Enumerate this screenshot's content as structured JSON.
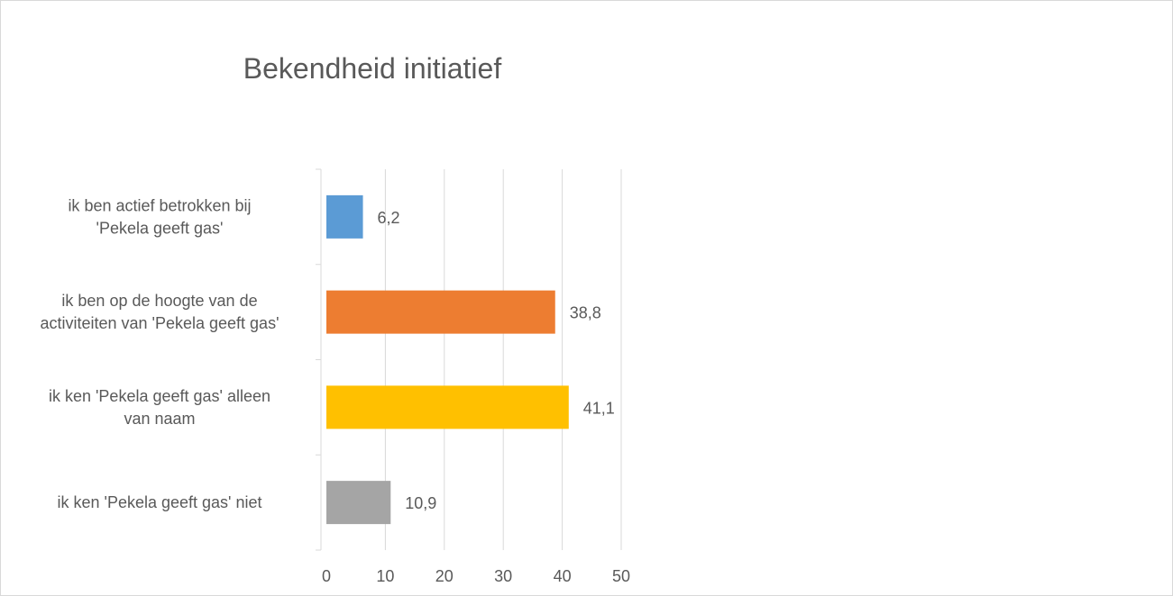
{
  "chart_data": {
    "type": "bar",
    "orientation": "horizontal",
    "title": "Bekendheid initiatief",
    "xlabel": "",
    "ylabel": "",
    "categories": [
      [
        "ik ben actief betrokken bij",
        "'Pekela geeft gas'"
      ],
      [
        "ik ben op de hoogte van de",
        "activiteiten van 'Pekela geeft gas'"
      ],
      [
        "ik ken 'Pekela geeft gas' alleen",
        "van naam"
      ],
      [
        "ik ken 'Pekela geeft gas' niet"
      ]
    ],
    "values": [
      6.2,
      38.8,
      41.1,
      10.9
    ],
    "value_labels": [
      "6,2",
      "38,8",
      "41,1",
      "10,9"
    ],
    "colors": [
      "#5b9bd5",
      "#ed7d31",
      "#ffc000",
      "#a5a5a5"
    ],
    "xlim": [
      0,
      50
    ],
    "xticks": [
      0,
      10,
      20,
      30,
      40,
      50
    ],
    "xtick_labels": [
      "0",
      "10",
      "20",
      "30",
      "40",
      "50"
    ],
    "grid": "vertical",
    "legend": "none"
  }
}
